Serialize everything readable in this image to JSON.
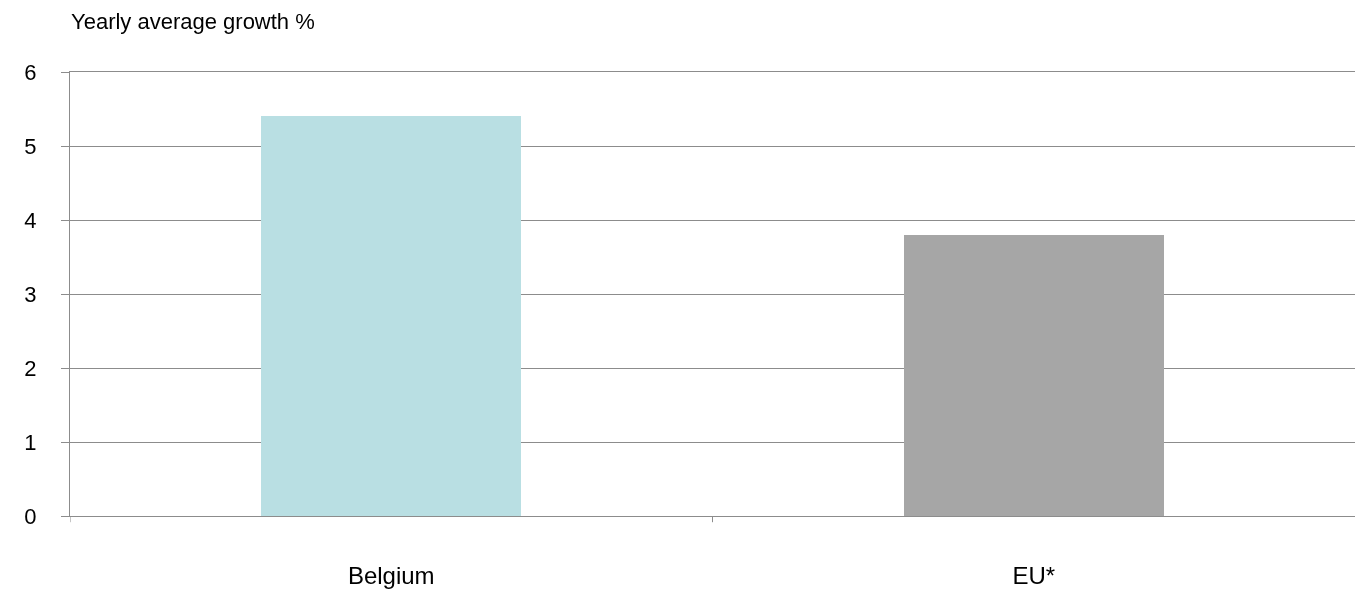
{
  "chart_data": {
    "type": "bar",
    "ylabel": "Yearly average growth %",
    "categories": [
      "Belgium",
      "EU*"
    ],
    "values": [
      5.4,
      3.8
    ],
    "colors": [
      "#b9dfe3",
      "#a6a6a6"
    ],
    "ylim": [
      0,
      6
    ],
    "yticks": [
      0,
      1,
      2,
      3,
      4,
      5,
      6
    ],
    "grid": "y"
  }
}
